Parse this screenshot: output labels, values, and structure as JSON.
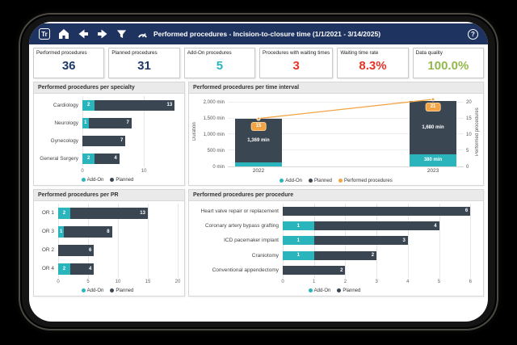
{
  "navbar": {
    "logo_text": "Tr",
    "title": "Performed procedures - Incision-to-closure time (1/1/2021 - 3/14/2025)",
    "help_text": "?"
  },
  "colors": {
    "navbar_bg": "#1f3361",
    "addon": "#2ab5bd",
    "planned": "#3b4653",
    "line": "#f2a444",
    "kpi_navy": "#1f3864",
    "kpi_red": "#e63327",
    "kpi_green": "#93b94c"
  },
  "kpis": [
    {
      "label": "Performed procedures",
      "value": "36",
      "color": "#1f3864"
    },
    {
      "label": "Planned procedures",
      "value": "31",
      "color": "#1f3864"
    },
    {
      "label": "Add-On procedures",
      "value": "5",
      "color": "#2ab5bd"
    },
    {
      "label": "Procedures with waiting times",
      "value": "3",
      "color": "#e63327"
    },
    {
      "label": "Waiting time rate",
      "value": "8.3%",
      "color": "#e63327"
    },
    {
      "label": "Data quality",
      "value": "100.0%",
      "color": "#93b94c"
    }
  ],
  "chart_data": [
    {
      "id": "specialty",
      "type": "bar",
      "orientation": "horizontal",
      "title": "Performed procedures per specialty",
      "categories": [
        "Cardiology",
        "Neurology",
        "Gynecology",
        "General Surgery"
      ],
      "series": [
        {
          "name": "Add-On",
          "color": "#2ab5bd",
          "values": [
            2,
            1,
            0,
            2
          ]
        },
        {
          "name": "Planned",
          "color": "#3b4653",
          "values": [
            13,
            7,
            7,
            4
          ]
        }
      ],
      "xticks": [
        0,
        10
      ],
      "xmax": 15.5,
      "legend": [
        "Add-On",
        "Planned"
      ]
    },
    {
      "id": "time_interval",
      "type": "column-line",
      "title": "Performed procedures per time interval",
      "categories": [
        "2022",
        "2023"
      ],
      "series": [
        {
          "name": "Add-On",
          "color": "#2ab5bd",
          "values": [
            131,
            380
          ],
          "labels": [
            "",
            "380 min"
          ]
        },
        {
          "name": "Planned",
          "color": "#3b4653",
          "values": [
            1369,
            1680
          ],
          "labels": [
            "1,369 min",
            "1,680 min"
          ]
        }
      ],
      "line": {
        "name": "Performed procedures",
        "color": "#f2a444",
        "values": [
          15,
          21
        ]
      },
      "y_left": {
        "label": "Duration",
        "max": 2200,
        "ticks": [
          {
            "value": 0,
            "label": "0 min"
          },
          {
            "value": 500,
            "label": "500 min"
          },
          {
            "value": 1000,
            "label": "1,000 min"
          },
          {
            "value": 1500,
            "label": "1,500 min"
          },
          {
            "value": 2000,
            "label": "2,000 min"
          }
        ]
      },
      "y_right": {
        "label": "Performed procedures",
        "max": 22,
        "ticks": [
          0,
          5,
          10,
          15,
          20
        ]
      },
      "legend": [
        "Add-On",
        "Planned",
        "Performed procedures"
      ]
    },
    {
      "id": "pr",
      "type": "bar",
      "orientation": "horizontal",
      "title": "Performed procedures per PR",
      "categories": [
        "OR 1",
        "OR 3",
        "OR 2",
        "OR 4"
      ],
      "series": [
        {
          "name": "Add-On",
          "color": "#2ab5bd",
          "values": [
            2,
            1,
            0,
            2
          ]
        },
        {
          "name": "Planned",
          "color": "#3b4653",
          "values": [
            13,
            8,
            6,
            4
          ]
        }
      ],
      "xticks": [
        0,
        5,
        10,
        15,
        20
      ],
      "xmax": 20,
      "legend": [
        "Add-On",
        "Planned"
      ]
    },
    {
      "id": "procedure",
      "type": "bar",
      "orientation": "horizontal",
      "title": "Performed procedures per procedure",
      "categories": [
        "Heart valve repair or replacement",
        "Coronary artery bypass grafting",
        "ICD pacemaker implant",
        "Craniotomy",
        "Conventional appendectomy"
      ],
      "series": [
        {
          "name": "Add-On",
          "color": "#2ab5bd",
          "values": [
            0,
            1,
            1,
            1,
            0
          ]
        },
        {
          "name": "Planned",
          "color": "#3b4653",
          "values": [
            6,
            4,
            3,
            2,
            2
          ]
        }
      ],
      "xticks": [
        0,
        1,
        2,
        3,
        4,
        5,
        6
      ],
      "xmax": 6.2,
      "legend": [
        "Add-On",
        "Planned"
      ]
    }
  ]
}
